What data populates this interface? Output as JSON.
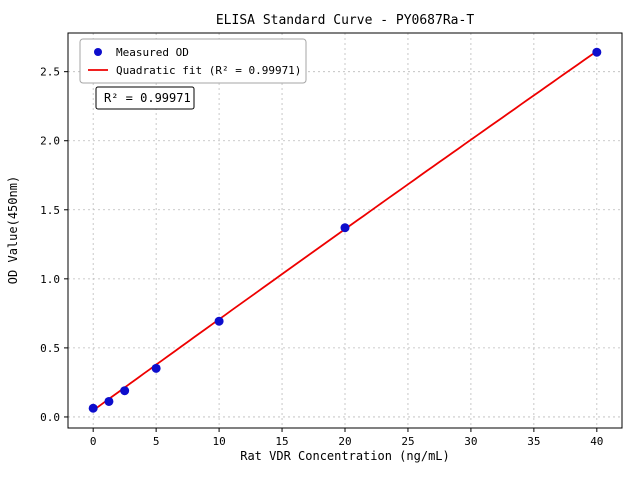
{
  "chart_data": {
    "type": "scatter",
    "title": "ELISA Standard Curve - PY0687Ra-T",
    "xlabel": "Rat VDR Concentration (ng/mL)",
    "ylabel": "OD Value(450nm)",
    "xlim": [
      -2,
      42
    ],
    "ylim": [
      -0.08,
      2.78
    ],
    "xticks": [
      0,
      5,
      10,
      15,
      20,
      25,
      30,
      35,
      40
    ],
    "yticks": [
      0.0,
      0.5,
      1.0,
      1.5,
      2.0,
      2.5
    ],
    "grid": true,
    "legend_position": "upper-left",
    "series": [
      {
        "name": "Measured OD",
        "type": "scatter",
        "color": "#0d0dcc",
        "x": [
          0,
          1.25,
          2.5,
          5,
          10,
          20,
          40
        ],
        "y": [
          0.063,
          0.112,
          0.19,
          0.352,
          0.693,
          1.37,
          2.641
        ]
      },
      {
        "name": "Quadratic fit (R² = 0.99971)",
        "type": "line",
        "color": "#ee0000",
        "fit": {
          "kind": "quadratic",
          "coeffs": [
            0.048,
            0.0662,
            -3e-05
          ],
          "range": [
            0,
            40
          ]
        }
      }
    ],
    "annotation": "R² = 0.99971",
    "colors": {
      "grid": "#bbbbbb",
      "axis": "#000000",
      "background": "#ffffff"
    }
  }
}
